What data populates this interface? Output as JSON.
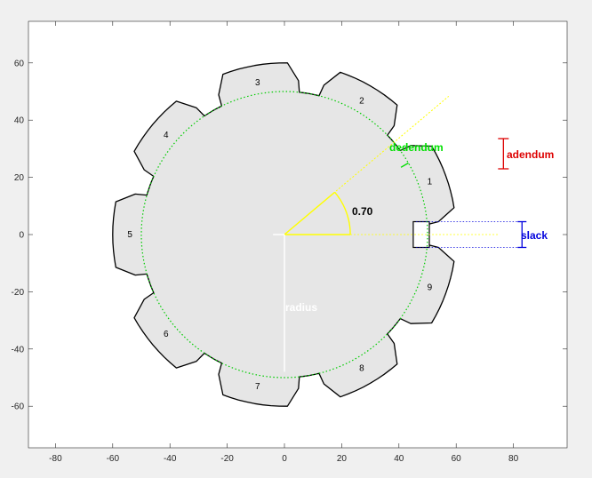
{
  "chart_data": {
    "type": "diagram",
    "xlim": [
      -90,
      100
    ],
    "ylim": [
      -75,
      75
    ],
    "x_ticks": [
      -80,
      -60,
      -40,
      -20,
      0,
      20,
      40,
      60,
      80
    ],
    "y_ticks": [
      60,
      40,
      20,
      0,
      -20,
      -40,
      -60
    ],
    "gear": {
      "center": [
        0,
        0
      ],
      "pitch_radius": 50,
      "addendum": 10,
      "tooth_count": 9,
      "first_tooth_angle_deg": 20,
      "angle_step_deg": 40,
      "tooth_labels": [
        "1",
        "2",
        "3",
        "4",
        "5",
        "6",
        "7",
        "8",
        "9"
      ],
      "fill_color": "#e6e6e6",
      "outline_color": "#000000"
    },
    "annotations": {
      "angle_text": "0.70",
      "angle_value_rad": 0.7,
      "dedendum_label": "dedendum",
      "adendum_label": "adendum",
      "slack_label": "slack",
      "radius_label": "radius"
    },
    "colors": {
      "pitch_circle": "#00cc00",
      "angle": "#ffff00",
      "dedendum": "#00e000",
      "adendum": "#dd0000",
      "slack": "#0000dd",
      "radius": "#ffffff",
      "axes_bg": "#ffffff",
      "figure_bg": "#f0f0f0"
    }
  }
}
